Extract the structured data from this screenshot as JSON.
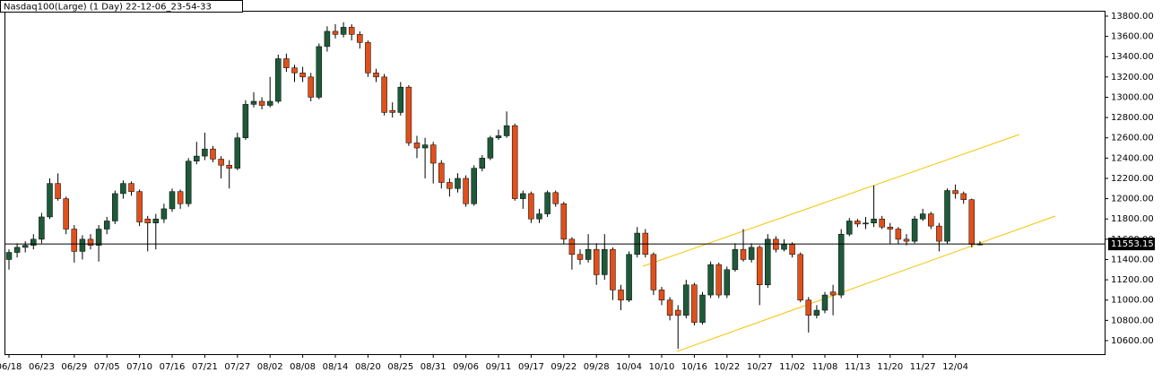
{
  "chart_data": {
    "type": "candlestick",
    "title": "Nasdaq100(Large) (1 Day) 22-12-06_23-54-33",
    "up_color": "#1e5a3a",
    "down_color": "#e0501c",
    "ylim": [
      10467,
      13844
    ],
    "yticks": [
      {
        "value": 10600,
        "label": "10600.00"
      },
      {
        "value": 10800,
        "label": "10800.00"
      },
      {
        "value": 11000,
        "label": "11000.00"
      },
      {
        "value": 11200,
        "label": "11200.00"
      },
      {
        "value": 11400,
        "label": "11400.00"
      },
      {
        "value": 11600,
        "label": "11600.00"
      },
      {
        "value": 11800,
        "label": "11800.00"
      },
      {
        "value": 12000,
        "label": "12000.00"
      },
      {
        "value": 12200,
        "label": "12200.00"
      },
      {
        "value": 12400,
        "label": "12400.00"
      },
      {
        "value": 12600,
        "label": "12600.00"
      },
      {
        "value": 12800,
        "label": "12800.00"
      },
      {
        "value": 13000,
        "label": "13000.00"
      },
      {
        "value": 13200,
        "label": "13200.00"
      },
      {
        "value": 13400,
        "label": "13400.00"
      },
      {
        "value": 13600,
        "label": "13600.00"
      },
      {
        "value": 13800,
        "label": "13800.00"
      }
    ],
    "last_price": 11553.15,
    "categories": [
      "06/18",
      null,
      null,
      null,
      "06/23",
      null,
      null,
      null,
      "06/29",
      null,
      null,
      null,
      "07/05",
      null,
      null,
      null,
      "07/10",
      null,
      null,
      null,
      "07/16",
      null,
      null,
      null,
      "07/21",
      null,
      null,
      null,
      "07/27",
      null,
      null,
      null,
      "08/02",
      null,
      null,
      null,
      "08/08",
      null,
      null,
      null,
      "08/14",
      null,
      null,
      null,
      "08/20",
      null,
      null,
      null,
      "08/25",
      null,
      null,
      null,
      "08/31",
      null,
      null,
      null,
      "09/06",
      null,
      null,
      null,
      "09/11",
      null,
      null,
      null,
      "09/17",
      null,
      null,
      null,
      "09/22",
      null,
      null,
      null,
      "09/28",
      null,
      null,
      null,
      "10/04",
      null,
      null,
      null,
      "10/10",
      null,
      null,
      null,
      "10/16",
      null,
      null,
      null,
      "10/22",
      null,
      null,
      null,
      "10/27",
      null,
      null,
      null,
      "11/02",
      null,
      null,
      null,
      "11/08",
      null,
      null,
      null,
      "11/13",
      null,
      null,
      null,
      "11/20",
      null,
      null,
      null,
      "11/27",
      null,
      null,
      null,
      "12/04",
      null,
      null,
      null
    ],
    "values": [
      [
        11400,
        11500,
        11300,
        11470
      ],
      [
        11470,
        11560,
        11420,
        11520
      ],
      [
        11520,
        11580,
        11470,
        11540
      ],
      [
        11540,
        11650,
        11500,
        11600
      ],
      [
        11600,
        11860,
        11560,
        11820
      ],
      [
        11820,
        12200,
        11800,
        12150
      ],
      [
        12150,
        12250,
        11980,
        12000
      ],
      [
        12000,
        12020,
        11650,
        11700
      ],
      [
        11700,
        11740,
        11370,
        11480
      ],
      [
        11480,
        11640,
        11400,
        11600
      ],
      [
        11600,
        11650,
        11500,
        11540
      ],
      [
        11540,
        11740,
        11380,
        11700
      ],
      [
        11700,
        11820,
        11650,
        11780
      ],
      [
        11780,
        12080,
        11750,
        12050
      ],
      [
        12050,
        12180,
        12000,
        12150
      ],
      [
        12150,
        12170,
        12030,
        12070
      ],
      [
        12070,
        12090,
        11730,
        11770
      ],
      [
        11800,
        11830,
        11480,
        11760
      ],
      [
        11760,
        11850,
        11500,
        11800
      ],
      [
        11800,
        11950,
        11760,
        11900
      ],
      [
        11900,
        12100,
        11870,
        12070
      ],
      [
        12070,
        12090,
        11900,
        11950
      ],
      [
        11950,
        12400,
        11920,
        12370
      ],
      [
        12370,
        12560,
        12340,
        12420
      ],
      [
        12420,
        12650,
        12380,
        12490
      ],
      [
        12490,
        12520,
        12360,
        12390
      ],
      [
        12390,
        12420,
        12200,
        12330
      ],
      [
        12330,
        12380,
        12100,
        12300
      ],
      [
        12300,
        12650,
        12280,
        12600
      ],
      [
        12600,
        12970,
        12580,
        12930
      ],
      [
        12930,
        13050,
        12900,
        12960
      ],
      [
        12960,
        13000,
        12880,
        12920
      ],
      [
        12920,
        13200,
        12900,
        12960
      ],
      [
        12960,
        13420,
        12940,
        13380
      ],
      [
        13380,
        13430,
        13250,
        13290
      ],
      [
        13290,
        13320,
        13150,
        13240
      ],
      [
        13240,
        13300,
        13150,
        13200
      ],
      [
        13200,
        13240,
        12960,
        13000
      ],
      [
        13000,
        13530,
        12980,
        13500
      ],
      [
        13500,
        13700,
        13450,
        13650
      ],
      [
        13650,
        13720,
        13580,
        13620
      ],
      [
        13620,
        13740,
        13590,
        13690
      ],
      [
        13690,
        13720,
        13560,
        13620
      ],
      [
        13620,
        13650,
        13480,
        13540
      ],
      [
        13540,
        13560,
        13200,
        13240
      ],
      [
        13240,
        13280,
        13150,
        13200
      ],
      [
        13200,
        13230,
        12820,
        12850
      ],
      [
        12870,
        12950,
        12800,
        12850
      ],
      [
        12850,
        13150,
        12820,
        13100
      ],
      [
        13100,
        13120,
        12520,
        12550
      ],
      [
        12550,
        12620,
        12400,
        12500
      ],
      [
        12500,
        12600,
        12200,
        12530
      ],
      [
        12530,
        12560,
        12150,
        12350
      ],
      [
        12350,
        12380,
        12100,
        12160
      ],
      [
        12160,
        12200,
        12020,
        12100
      ],
      [
        12100,
        12250,
        12060,
        12200
      ],
      [
        12200,
        12230,
        11920,
        11950
      ],
      [
        11950,
        12330,
        11930,
        12300
      ],
      [
        12300,
        12430,
        12270,
        12400
      ],
      [
        12400,
        12620,
        12380,
        12600
      ],
      [
        12600,
        12680,
        12580,
        12620
      ],
      [
        12620,
        12860,
        12600,
        12720
      ],
      [
        12720,
        12740,
        11980,
        12000
      ],
      [
        12000,
        12080,
        11900,
        12050
      ],
      [
        12050,
        12070,
        11760,
        11800
      ],
      [
        11800,
        11900,
        11760,
        11850
      ],
      [
        11850,
        12080,
        11820,
        12060
      ],
      [
        12060,
        12080,
        11920,
        11950
      ],
      [
        11950,
        11970,
        11550,
        11600
      ],
      [
        11600,
        11620,
        11300,
        11450
      ],
      [
        11450,
        11500,
        11350,
        11400
      ],
      [
        11400,
        11650,
        11370,
        11500
      ],
      [
        11500,
        11560,
        11150,
        11250
      ],
      [
        11250,
        11650,
        11200,
        11500
      ],
      [
        11500,
        11520,
        11000,
        11100
      ],
      [
        11100,
        11150,
        10900,
        11000
      ],
      [
        11000,
        11480,
        10980,
        11450
      ],
      [
        11450,
        11720,
        11420,
        11660
      ],
      [
        11660,
        11700,
        11420,
        11450
      ],
      [
        11450,
        11470,
        11050,
        11100
      ],
      [
        11100,
        11130,
        10950,
        11000
      ],
      [
        11000,
        11030,
        10800,
        10850
      ],
      [
        10900,
        10950,
        10520,
        10850
      ],
      [
        10850,
        11200,
        10820,
        11150
      ],
      [
        11150,
        11170,
        10750,
        10780
      ],
      [
        10780,
        11080,
        10760,
        11050
      ],
      [
        11050,
        11380,
        11020,
        11350
      ],
      [
        11350,
        11370,
        11020,
        11050
      ],
      [
        11050,
        11330,
        11020,
        11300
      ],
      [
        11300,
        11560,
        11280,
        11500
      ],
      [
        11500,
        11700,
        11380,
        11400
      ],
      [
        11400,
        11560,
        11370,
        11520
      ],
      [
        11520,
        11540,
        10950,
        11150
      ],
      [
        11150,
        11650,
        11120,
        11600
      ],
      [
        11600,
        11630,
        11470,
        11500
      ],
      [
        11500,
        11600,
        11480,
        11550
      ],
      [
        11550,
        11570,
        11420,
        11450
      ],
      [
        11450,
        11470,
        10980,
        11000
      ],
      [
        11000,
        11030,
        10680,
        10850
      ],
      [
        10850,
        10950,
        10820,
        10900
      ],
      [
        10900,
        11080,
        10870,
        11050
      ],
      [
        11080,
        11150,
        10850,
        11050
      ],
      [
        11050,
        11700,
        11020,
        11650
      ],
      [
        11650,
        11810,
        11630,
        11780
      ],
      [
        11780,
        11800,
        11720,
        11750
      ],
      [
        11750,
        11820,
        11700,
        11760
      ],
      [
        11760,
        12130,
        11720,
        11800
      ],
      [
        11800,
        11830,
        11700,
        11720
      ],
      [
        11720,
        11760,
        11550,
        11700
      ],
      [
        11700,
        11720,
        11550,
        11600
      ],
      [
        11600,
        11650,
        11540,
        11580
      ],
      [
        11580,
        11830,
        11560,
        11800
      ],
      [
        11800,
        11900,
        11780,
        11850
      ],
      [
        11850,
        11870,
        11700,
        11730
      ],
      [
        11730,
        11760,
        11480,
        11580
      ],
      [
        11580,
        12100,
        11550,
        12080
      ],
      [
        12080,
        12140,
        12000,
        12050
      ],
      [
        12050,
        12070,
        11950,
        11990
      ],
      [
        11990,
        12000,
        11520,
        11550
      ],
      [
        11550,
        11580,
        11540,
        11553
      ]
    ]
  }
}
